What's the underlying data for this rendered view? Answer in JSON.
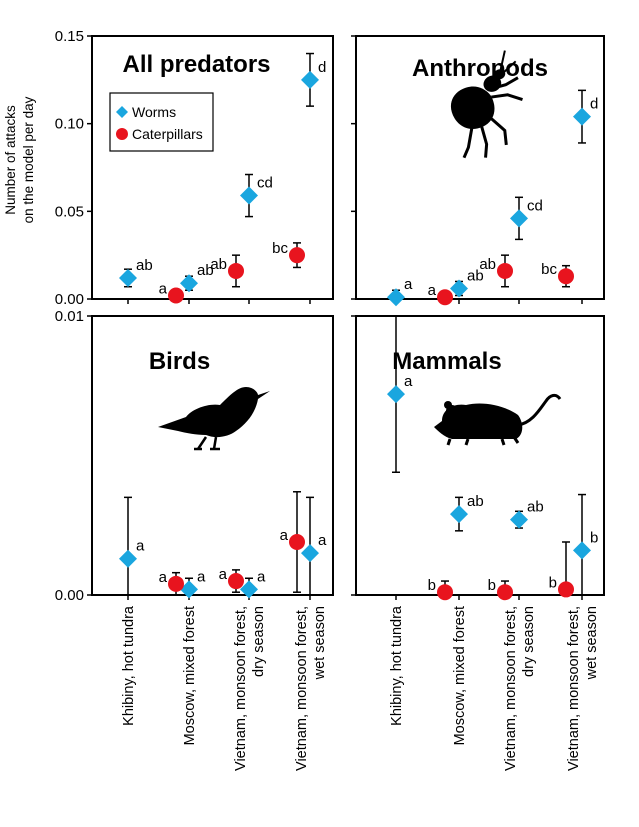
{
  "figure": {
    "ylabel_lines": [
      "Number of attacks",
      "on the model per day"
    ]
  },
  "legend": {
    "items": [
      {
        "name": "Worms",
        "color": "#1aa6df",
        "marker": "diamond"
      },
      {
        "name": "Caterpillars",
        "color": "#e8141e",
        "marker": "circle"
      }
    ]
  },
  "icons": [
    "beetle-icon",
    "bird-icon",
    "mouse-icon"
  ],
  "chart_data": [
    {
      "type": "scatter",
      "title": "All predators",
      "categories": [
        "Khibiny, hot tundra",
        "Moscow, mixed forest",
        "Vietnam, monsoon forest, dry season",
        "Vietnam, monsoon forest, wet season"
      ],
      "ylim": [
        0,
        0.15
      ],
      "yticks": [
        "0.00",
        "0.05",
        "0.10",
        "0.15"
      ],
      "series": [
        {
          "name": "Worms",
          "values": [
            0.012,
            0.009,
            0.059,
            0.125
          ],
          "error": [
            0.005,
            0.004,
            0.012,
            0.015
          ],
          "labels": [
            "ab",
            "ab",
            "cd",
            "d"
          ]
        },
        {
          "name": "Caterpillars",
          "values": [
            null,
            0.002,
            0.016,
            0.025
          ],
          "error": [
            null,
            0.003,
            0.009,
            0.007
          ],
          "labels": [
            null,
            "a",
            "ab",
            "bc"
          ]
        }
      ]
    },
    {
      "type": "scatter",
      "title": "Anthropods",
      "categories": [
        "Khibiny, hot tundra",
        "Moscow, mixed forest",
        "Vietnam, monsoon forest, dry season",
        "Vietnam, monsoon forest, wet season"
      ],
      "ylim": [
        0,
        0.15
      ],
      "yticks": [
        "0.00",
        "0.05",
        "0.10",
        "0.15"
      ],
      "series": [
        {
          "name": "Worms",
          "values": [
            0.001,
            0.006,
            0.046,
            0.104
          ],
          "error": [
            0.004,
            0.004,
            0.012,
            0.015
          ],
          "labels": [
            "a",
            "ab",
            "cd",
            "d"
          ]
        },
        {
          "name": "Caterpillars",
          "values": [
            null,
            0.001,
            0.016,
            0.013
          ],
          "error": [
            null,
            0.003,
            0.009,
            0.006
          ],
          "labels": [
            null,
            "a",
            "ab",
            "bc"
          ]
        }
      ]
    },
    {
      "type": "scatter",
      "title": "Birds",
      "categories": [
        "Khibiny, hot tundra",
        "Moscow, mixed forest",
        "Vietnam, monsoon forest, dry season",
        "Vietnam, monsoon forest, wet season"
      ],
      "ylim": [
        0,
        0.01
      ],
      "yticks": [
        "0.00",
        "0.01"
      ],
      "series": [
        {
          "name": "Worms",
          "values": [
            0.0013,
            0.0002,
            0.0002,
            0.0015
          ],
          "error": [
            0.0022,
            0.0004,
            0.0004,
            0.002
          ],
          "labels": [
            "a",
            "a",
            "a",
            "a"
          ]
        },
        {
          "name": "Caterpillars",
          "values": [
            null,
            0.0004,
            0.0005,
            0.0019
          ],
          "error": [
            null,
            0.0004,
            0.0004,
            0.0018
          ],
          "labels": [
            null,
            "a",
            "a",
            "a"
          ]
        }
      ]
    },
    {
      "type": "scatter",
      "title": "Mammals",
      "categories": [
        "Khibiny, hot tundra",
        "Moscow, mixed forest",
        "Vietnam, monsoon forest, dry season",
        "Vietnam, monsoon forest, wet season"
      ],
      "ylim": [
        0,
        0.01
      ],
      "yticks": [
        "0.00",
        "0.01"
      ],
      "series": [
        {
          "name": "Worms",
          "values": [
            0.0072,
            0.0029,
            0.0027,
            0.0016
          ],
          "error": [
            0.0028,
            0.0006,
            0.0003,
            0.002
          ],
          "labels": [
            "a",
            "ab",
            "ab",
            "b"
          ]
        },
        {
          "name": "Caterpillars",
          "values": [
            null,
            0.0001,
            0.0001,
            0.0002
          ],
          "error": [
            null,
            0.0004,
            0.0004,
            0.0017
          ],
          "labels": [
            null,
            "b",
            "b",
            "b"
          ]
        }
      ]
    }
  ]
}
